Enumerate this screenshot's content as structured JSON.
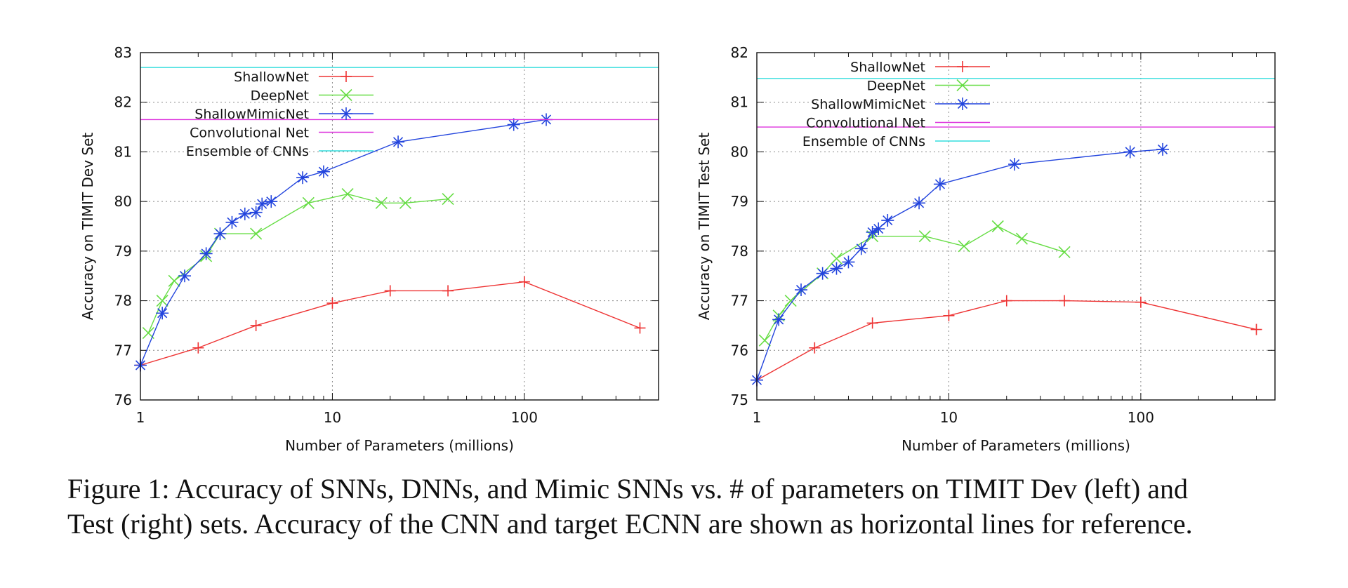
{
  "figure": {
    "caption_line1": "Figure 1: Accuracy of SNNs, DNNs, and Mimic SNNs vs. # of parameters on TIMIT Dev (left) and",
    "caption_line2": "Test (right) sets. Accuracy of the CNN and target ECNN are shown as horizontal lines for reference."
  },
  "colors": {
    "ShallowNet": "#ee3333",
    "DeepNet": "#66dd44",
    "ShallowMimicNet": "#2244dd",
    "Convolutional Net": "#dd33dd",
    "Ensemble of CNNs": "#33dddd"
  },
  "chart_data": [
    {
      "type": "line",
      "xscale": "log",
      "xlabel": "Number of Parameters (millions)",
      "ylabel": "Accuracy on TIMIT Dev Set",
      "xlim": [
        1,
        500
      ],
      "ylim": [
        76,
        83
      ],
      "xticks": [
        1,
        10,
        100
      ],
      "xtick_labels": [
        "1",
        "10",
        "100"
      ],
      "yticks": [
        76,
        77,
        78,
        79,
        80,
        81,
        82,
        83
      ],
      "ytick_labels": [
        "76",
        "77",
        "78",
        "79",
        "80",
        "81",
        "82",
        "83"
      ],
      "grid": true,
      "legend": [
        "ShallowNet",
        "DeepNet",
        "ShallowMimicNet",
        "Convolutional Net",
        "Ensemble of CNNs"
      ],
      "series": [
        {
          "name": "ShallowNet",
          "marker": "plus",
          "x": [
            1,
            2,
            4,
            10,
            20,
            40,
            100,
            400
          ],
          "y": [
            76.7,
            77.05,
            77.5,
            77.95,
            78.2,
            78.2,
            78.38,
            77.45
          ]
        },
        {
          "name": "DeepNet",
          "marker": "x",
          "x": [
            1.1,
            1.3,
            1.5,
            2.2,
            2.6,
            4,
            7.5,
            12,
            18,
            24,
            40
          ],
          "y": [
            77.35,
            78.0,
            78.4,
            78.9,
            79.35,
            79.35,
            79.97,
            80.15,
            79.97,
            79.97,
            80.05
          ]
        },
        {
          "name": "ShallowMimicNet",
          "marker": "asterisk",
          "x": [
            1,
            1.3,
            1.7,
            2.2,
            2.6,
            3.0,
            3.5,
            4.0,
            4.3,
            4.8,
            7,
            9,
            22,
            88,
            130
          ],
          "y": [
            76.7,
            77.75,
            78.5,
            78.95,
            79.35,
            79.58,
            79.75,
            79.78,
            79.95,
            80.0,
            80.48,
            80.6,
            81.2,
            81.55,
            81.65
          ]
        },
        {
          "name": "Convolutional Net",
          "hline": 81.65
        },
        {
          "name": "Ensemble of CNNs",
          "hline": 82.7
        }
      ]
    },
    {
      "type": "line",
      "xscale": "log",
      "xlabel": "Number of Parameters (millions)",
      "ylabel": "Accuracy on TIMIT Test Set",
      "xlim": [
        1,
        500
      ],
      "ylim": [
        75,
        82
      ],
      "xticks": [
        1,
        10,
        100
      ],
      "xtick_labels": [
        "1",
        "10",
        "100"
      ],
      "yticks": [
        75,
        76,
        77,
        78,
        79,
        80,
        81,
        82
      ],
      "ytick_labels": [
        "75",
        "76",
        "77",
        "78",
        "79",
        "80",
        "81",
        "82"
      ],
      "grid": true,
      "legend": [
        "ShallowNet",
        "DeepNet",
        "ShallowMimicNet",
        "Convolutional Net",
        "Ensemble of CNNs"
      ],
      "series": [
        {
          "name": "ShallowNet",
          "marker": "plus",
          "x": [
            1,
            2,
            4,
            10,
            20,
            40,
            100,
            400
          ],
          "y": [
            75.4,
            76.05,
            76.55,
            76.7,
            77.0,
            77.0,
            76.97,
            76.42
          ]
        },
        {
          "name": "DeepNet",
          "marker": "x",
          "x": [
            1.1,
            1.3,
            1.5,
            2.2,
            2.6,
            4,
            7.5,
            12,
            18,
            24,
            40
          ],
          "y": [
            76.2,
            76.7,
            77.0,
            77.55,
            77.85,
            78.3,
            78.3,
            78.1,
            78.5,
            78.25,
            77.98
          ]
        },
        {
          "name": "ShallowMimicNet",
          "marker": "asterisk",
          "x": [
            1,
            1.3,
            1.7,
            2.2,
            2.6,
            3.0,
            3.5,
            4.0,
            4.3,
            4.8,
            7,
            9,
            22,
            88,
            130
          ],
          "y": [
            75.4,
            76.62,
            77.22,
            77.55,
            77.65,
            77.78,
            78.05,
            78.38,
            78.45,
            78.62,
            78.97,
            79.35,
            79.75,
            80.0,
            80.05
          ]
        },
        {
          "name": "Convolutional Net",
          "hline": 80.5
        },
        {
          "name": "Ensemble of CNNs",
          "hline": 81.48
        }
      ]
    }
  ]
}
